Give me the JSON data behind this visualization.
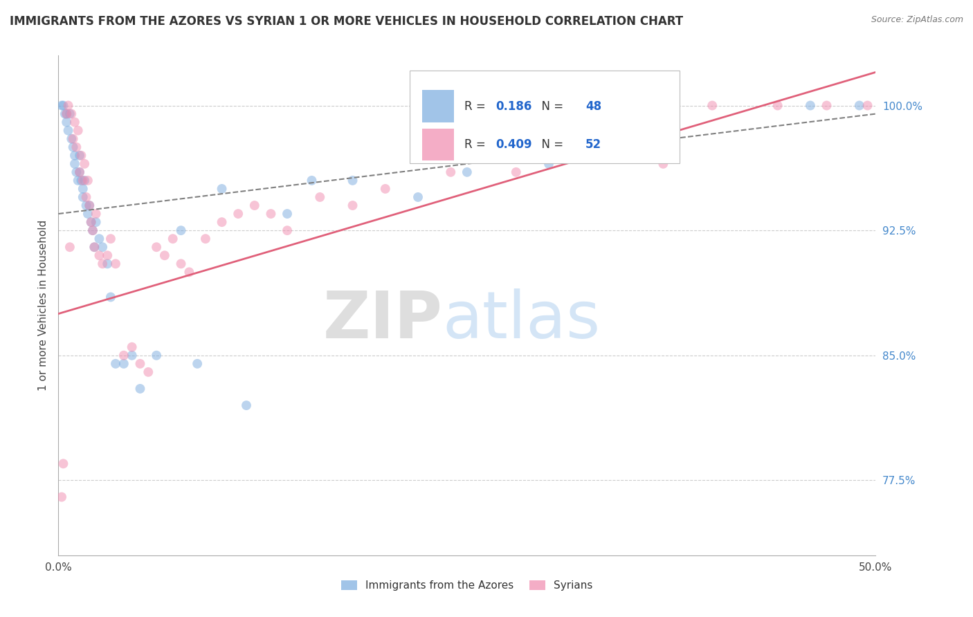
{
  "title": "IMMIGRANTS FROM THE AZORES VS SYRIAN 1 OR MORE VEHICLES IN HOUSEHOLD CORRELATION CHART",
  "source": "Source: ZipAtlas.com",
  "ylabel_label": "1 or more Vehicles in Household",
  "legend_entries": [
    {
      "label": "Immigrants from the Azores",
      "color": "#a8c4e8"
    },
    {
      "label": "Syrians",
      "color": "#f4afc8"
    }
  ],
  "r_values": [
    {
      "r": "0.186",
      "n": "48"
    },
    {
      "r": "0.409",
      "n": "52"
    }
  ],
  "xlim": [
    0.0,
    50.0
  ],
  "ylim": [
    73.0,
    103.0
  ],
  "xaxis_ticks": [
    0.0,
    50.0
  ],
  "yaxis_ticks": [
    77.5,
    85.0,
    92.5,
    100.0
  ],
  "watermark_zip": "ZIP",
  "watermark_atlas": "atlas",
  "blue_scatter_x": [
    0.2,
    0.3,
    0.4,
    0.5,
    0.5,
    0.6,
    0.7,
    0.8,
    0.9,
    1.0,
    1.0,
    1.1,
    1.2,
    1.3,
    1.3,
    1.4,
    1.5,
    1.5,
    1.6,
    1.7,
    1.8,
    1.9,
    2.0,
    2.1,
    2.2,
    2.3,
    2.5,
    2.7,
    3.0,
    3.2,
    3.5,
    4.0,
    4.5,
    5.0,
    6.0,
    7.5,
    8.5,
    10.0,
    11.5,
    14.0,
    15.5,
    18.0,
    22.0,
    25.0,
    30.0,
    37.0,
    46.0,
    49.0
  ],
  "blue_scatter_y": [
    100.0,
    100.0,
    99.5,
    99.5,
    99.0,
    98.5,
    99.5,
    98.0,
    97.5,
    97.0,
    96.5,
    96.0,
    95.5,
    97.0,
    96.0,
    95.5,
    95.0,
    94.5,
    95.5,
    94.0,
    93.5,
    94.0,
    93.0,
    92.5,
    91.5,
    93.0,
    92.0,
    91.5,
    90.5,
    88.5,
    84.5,
    84.5,
    85.0,
    83.0,
    85.0,
    92.5,
    84.5,
    95.0,
    82.0,
    93.5,
    95.5,
    95.5,
    94.5,
    96.0,
    96.5,
    100.0,
    100.0,
    100.0
  ],
  "pink_scatter_x": [
    0.2,
    0.3,
    0.5,
    0.6,
    0.7,
    0.8,
    0.9,
    1.0,
    1.1,
    1.2,
    1.3,
    1.4,
    1.5,
    1.6,
    1.7,
    1.8,
    1.9,
    2.0,
    2.1,
    2.2,
    2.3,
    2.5,
    2.7,
    3.0,
    3.2,
    3.5,
    4.0,
    4.5,
    5.0,
    5.5,
    6.0,
    6.5,
    7.0,
    7.5,
    8.0,
    9.0,
    10.0,
    11.0,
    12.0,
    13.0,
    14.0,
    16.0,
    18.0,
    20.0,
    24.0,
    28.0,
    33.0,
    37.0,
    40.0,
    44.0,
    47.0,
    49.5
  ],
  "pink_scatter_y": [
    76.5,
    78.5,
    99.5,
    100.0,
    91.5,
    99.5,
    98.0,
    99.0,
    97.5,
    98.5,
    96.0,
    97.0,
    95.5,
    96.5,
    94.5,
    95.5,
    94.0,
    93.0,
    92.5,
    91.5,
    93.5,
    91.0,
    90.5,
    91.0,
    92.0,
    90.5,
    85.0,
    85.5,
    84.5,
    84.0,
    91.5,
    91.0,
    92.0,
    90.5,
    90.0,
    92.0,
    93.0,
    93.5,
    94.0,
    93.5,
    92.5,
    94.5,
    94.0,
    95.0,
    96.0,
    96.0,
    97.0,
    96.5,
    100.0,
    100.0,
    100.0,
    100.0
  ],
  "blue_line_x": [
    0.0,
    50.0
  ],
  "blue_line_y": [
    93.5,
    99.5
  ],
  "pink_line_x": [
    0.0,
    50.0
  ],
  "pink_line_y": [
    87.5,
    102.0
  ],
  "background_color": "#ffffff",
  "grid_color": "#cccccc",
  "scatter_alpha": 0.5,
  "scatter_size": 100,
  "blue_color": "#7aabdf",
  "blue_line_color": "#808080",
  "pink_color": "#f08bae",
  "pink_line_color": "#e0607a"
}
